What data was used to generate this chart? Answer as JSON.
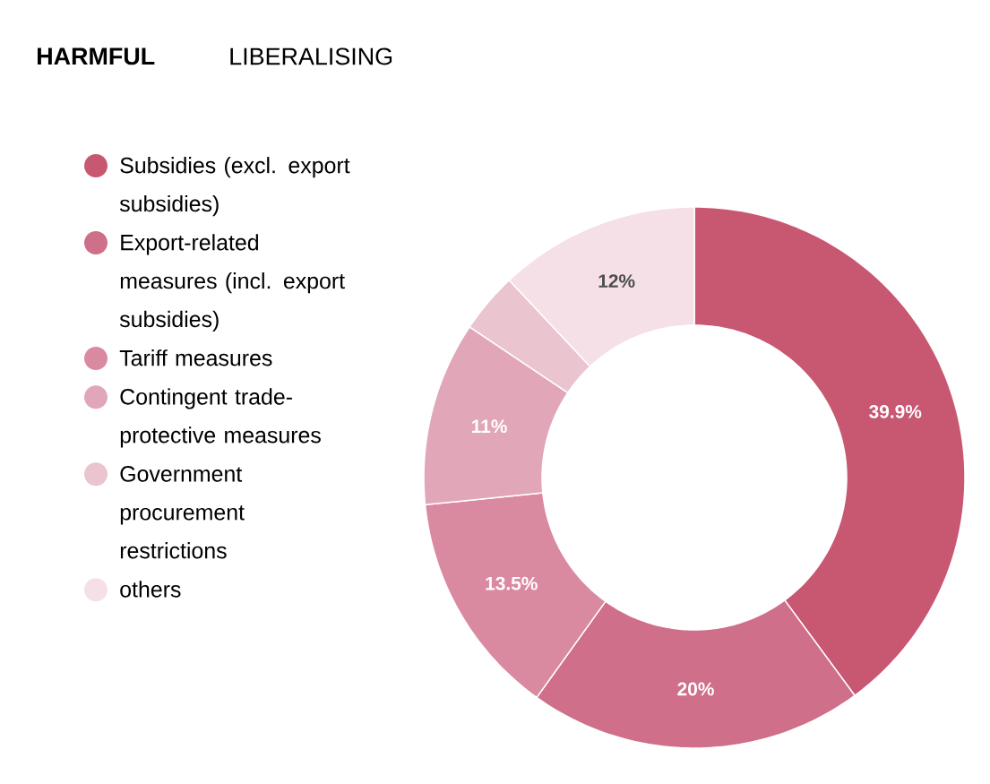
{
  "chart_data": {
    "type": "donut",
    "title": "HARMFUL",
    "subtitle": "LIBERALISING",
    "categories": [
      "Subsidies (excl. export subsidies)",
      "Export-related measures (incl. export subsidies)",
      "Tariff measures",
      "Contingent trade-protective measures",
      "Government procurement restrictions",
      "others"
    ],
    "values": [
      39.9,
      20,
      13.5,
      11,
      3.6,
      12
    ],
    "value_labels": [
      "39.9%",
      "20%",
      "13.5%",
      "11%",
      null,
      "12%"
    ],
    "colors": [
      "#c85772",
      "#cf6f89",
      "#da8aa0",
      "#e1a7b9",
      "#eac4cf",
      "#f4e0e6"
    ],
    "legend": "left"
  }
}
